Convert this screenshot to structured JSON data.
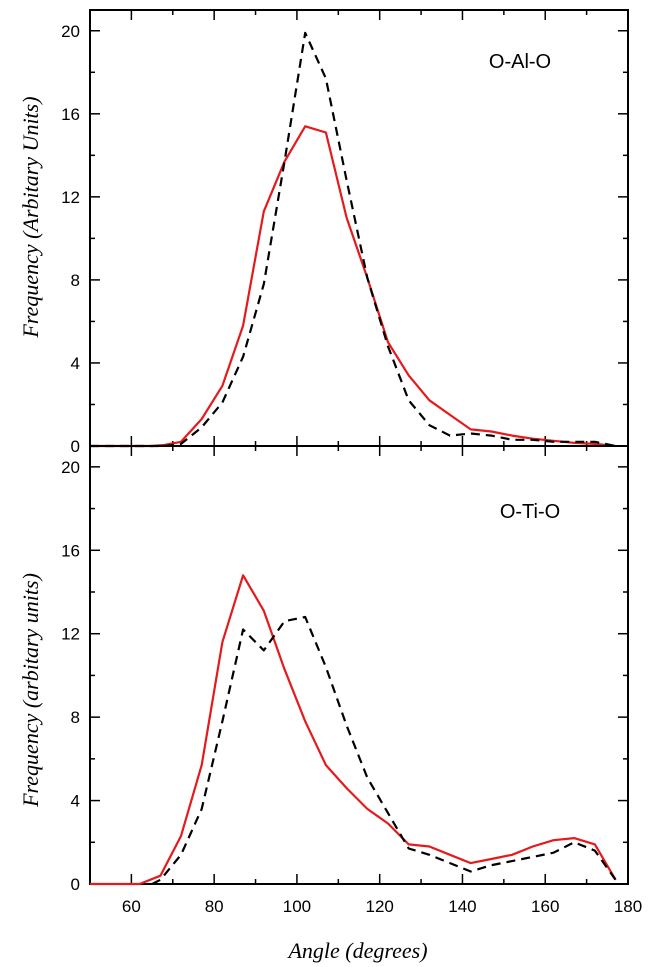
{
  "chart_data": [
    {
      "type": "line",
      "panel": "top",
      "annotation": "O-Al-O",
      "ylabel": "Frequency (Arbitary Units)",
      "xlabel": "",
      "xlim": [
        50,
        180
      ],
      "ylim": [
        0,
        21
      ],
      "x_ticks": [
        60,
        80,
        100,
        120,
        140,
        160,
        180
      ],
      "y_ticks": [
        0,
        4,
        8,
        12,
        16,
        20
      ],
      "y_tick_labels": [
        "0",
        "4",
        "8",
        "12",
        "16",
        "20"
      ],
      "series": [
        {
          "color": "#e41a1c",
          "style": "solid",
          "x": [
            50,
            55,
            60,
            65,
            68,
            72,
            77,
            82,
            87,
            92,
            97,
            102,
            107,
            112,
            117,
            122,
            127,
            132,
            137,
            142,
            147,
            152,
            157,
            162,
            167,
            172,
            177
          ],
          "y": [
            0,
            0,
            0,
            0,
            0.05,
            0.2,
            1.3,
            2.9,
            5.8,
            11.3,
            13.7,
            15.4,
            15.1,
            11.0,
            8.1,
            5.0,
            3.4,
            2.2,
            1.5,
            0.8,
            0.7,
            0.5,
            0.35,
            0.25,
            0.15,
            0.1,
            0
          ]
        },
        {
          "color": "#000000",
          "style": "dashed",
          "x": [
            50,
            55,
            60,
            65,
            68,
            72,
            77,
            82,
            87,
            92,
            97,
            102,
            107,
            112,
            117,
            122,
            127,
            132,
            137,
            142,
            147,
            152,
            157,
            162,
            167,
            172,
            177
          ],
          "y": [
            0,
            0,
            0,
            0,
            0,
            0.1,
            0.9,
            2.1,
            4.3,
            7.8,
            13.7,
            19.9,
            17.7,
            12.8,
            8.1,
            4.8,
            2.2,
            1.0,
            0.5,
            0.6,
            0.5,
            0.3,
            0.3,
            0.2,
            0.2,
            0.2,
            0
          ]
        }
      ]
    },
    {
      "type": "line",
      "panel": "bottom",
      "annotation": "O-Ti-O",
      "ylabel": "Frequency (arbitary units)",
      "xlabel": "Angle (degrees)",
      "xlim": [
        50,
        180
      ],
      "ylim": [
        0,
        21
      ],
      "x_ticks": [
        60,
        80,
        100,
        120,
        140,
        160,
        180
      ],
      "x_tick_labels": [
        "60",
        "80",
        "100",
        "120",
        "140",
        "160",
        "180"
      ],
      "y_ticks": [
        0,
        4,
        8,
        12,
        16,
        20
      ],
      "y_tick_labels": [
        "0",
        "4",
        "8",
        "12",
        "16",
        "20"
      ],
      "series": [
        {
          "color": "#e41a1c",
          "style": "solid",
          "x": [
            50,
            55,
            60,
            62,
            67,
            72,
            77,
            82,
            87,
            92,
            97,
            102,
            107,
            112,
            117,
            122,
            127,
            132,
            137,
            142,
            147,
            152,
            157,
            162,
            167,
            172,
            177
          ],
          "y": [
            0,
            0,
            0,
            0,
            0.4,
            2.3,
            5.7,
            11.6,
            14.8,
            13.1,
            10.3,
            7.8,
            5.7,
            4.6,
            3.6,
            2.9,
            1.9,
            1.8,
            1.4,
            1.0,
            1.2,
            1.4,
            1.8,
            2.1,
            2.2,
            1.9,
            0.2
          ]
        },
        {
          "color": "#000000",
          "style": "dashed",
          "x": [
            65,
            67,
            72,
            77,
            82,
            87,
            92,
            97,
            102,
            107,
            112,
            117,
            122,
            127,
            132,
            137,
            142,
            147,
            152,
            157,
            162,
            167,
            172,
            177
          ],
          "y": [
            0,
            0.2,
            1.4,
            3.6,
            7.8,
            12.2,
            11.2,
            12.6,
            12.8,
            10.4,
            7.6,
            5.1,
            3.4,
            1.7,
            1.4,
            1.0,
            0.6,
            0.9,
            1.1,
            1.3,
            1.5,
            2.0,
            1.6,
            0.2
          ]
        }
      ]
    }
  ]
}
